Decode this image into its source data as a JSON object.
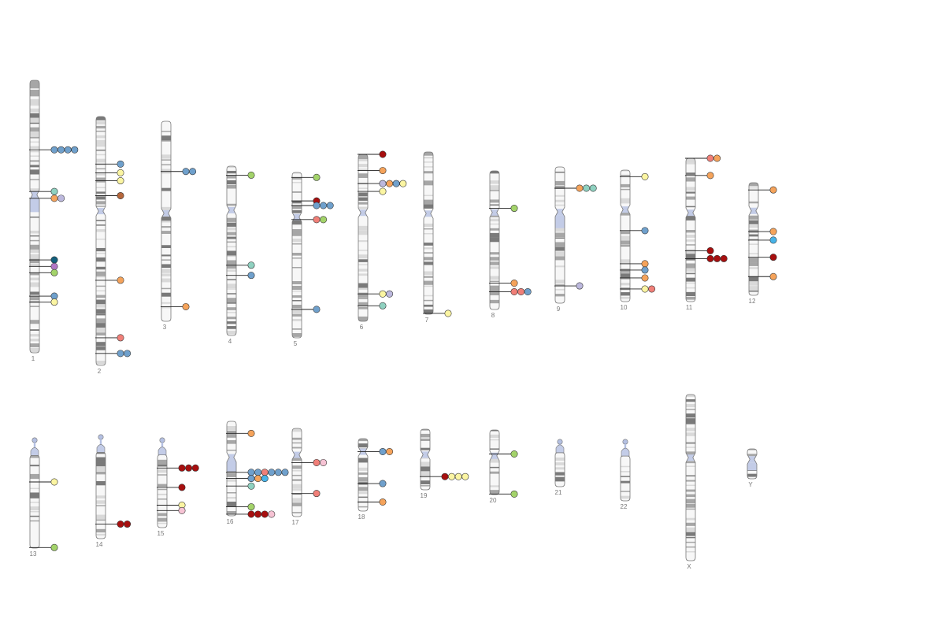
{
  "colors": {
    "outline": "#777777",
    "body": "#f7f7f7",
    "light_band": "#d9d9d9",
    "dark_band": "#7a7a7a",
    "mid_band": "#a6a6a6",
    "centromere": "#c3cce7",
    "stalk": "#b4c0e2",
    "line": "#222222"
  },
  "palette": {
    "blue": "#6fa0cc",
    "orange": "#f5a35b",
    "green": "#a3d36a",
    "yellow": "#fbf5a2",
    "teal": "#8fd1c0",
    "lavender": "#bcb8dd",
    "pink": "#f6c3d4",
    "salmon": "#f07f78",
    "darkred": "#a70f0f",
    "brown": "#b5663b",
    "navy": "#13607d",
    "purple": "#b377c6",
    "skyblue": "#47b3e8"
  },
  "chromosomes": [
    {
      "name": "1",
      "length": 248,
      "centromere": 0.42,
      "acrocentric": false,
      "marks": [
        {
          "pos": 0.255,
          "colors": [
            "blue",
            "blue",
            "blue",
            "blue"
          ]
        },
        {
          "pos": 0.408,
          "colors": [
            "teal"
          ]
        },
        {
          "pos": 0.433,
          "colors": [
            "orange",
            "lavender"
          ]
        },
        {
          "pos": 0.659,
          "colors": [
            "navy"
          ]
        },
        {
          "pos": 0.683,
          "colors": [
            "purple"
          ]
        },
        {
          "pos": 0.706,
          "colors": [
            "green"
          ]
        },
        {
          "pos": 0.792,
          "colors": [
            "blue"
          ]
        },
        {
          "pos": 0.814,
          "colors": [
            "yellow"
          ]
        }
      ]
    },
    {
      "name": "2",
      "length": 242,
      "centromere": 0.38,
      "acrocentric": false,
      "marks": [
        {
          "pos": 0.191,
          "colors": [
            "blue"
          ]
        },
        {
          "pos": 0.226,
          "colors": [
            "yellow"
          ]
        },
        {
          "pos": 0.258,
          "colors": [
            "yellow"
          ]
        },
        {
          "pos": 0.318,
          "colors": [
            "brown"
          ]
        },
        {
          "pos": 0.658,
          "colors": [
            "orange"
          ]
        },
        {
          "pos": 0.889,
          "colors": [
            "salmon"
          ]
        },
        {
          "pos": 0.952,
          "colors": [
            "blue",
            "blue"
          ]
        }
      ]
    },
    {
      "name": "3",
      "length": 198,
      "centromere": 0.46,
      "acrocentric": false,
      "marks": [
        {
          "pos": 0.251,
          "colors": [
            "blue",
            "blue"
          ]
        },
        {
          "pos": 0.927,
          "colors": [
            "orange"
          ]
        }
      ]
    },
    {
      "name": "4",
      "length": 190,
      "centromere": 0.26,
      "acrocentric": false,
      "marks": [
        {
          "pos": 0.053,
          "colors": [
            "green"
          ]
        },
        {
          "pos": 0.585,
          "colors": [
            "teal"
          ]
        },
        {
          "pos": 0.645,
          "colors": [
            "blue"
          ]
        }
      ]
    },
    {
      "name": "5",
      "length": 181,
      "centromere": 0.27,
      "acrocentric": false,
      "marks": [
        {
          "pos": 0.03,
          "colors": [
            "green"
          ]
        },
        {
          "pos": 0.172,
          "colors": [
            "darkred"
          ]
        },
        {
          "pos": 0.2,
          "colors": [
            "blue",
            "blue",
            "blue"
          ]
        },
        {
          "pos": 0.285,
          "colors": [
            "salmon",
            "green"
          ]
        },
        {
          "pos": 0.828,
          "colors": [
            "blue"
          ]
        }
      ]
    },
    {
      "name": "6",
      "length": 171,
      "centromere": 0.35,
      "acrocentric": false,
      "marks": [
        {
          "pos": 0.0,
          "colors": [
            "darkred"
          ]
        },
        {
          "pos": 0.097,
          "colors": [
            "orange"
          ]
        },
        {
          "pos": 0.175,
          "colors": [
            "lavender",
            "orange",
            "blue",
            "yellow"
          ]
        },
        {
          "pos": 0.222,
          "colors": [
            "yellow"
          ]
        },
        {
          "pos": 0.836,
          "colors": [
            "yellow",
            "lavender"
          ]
        },
        {
          "pos": 0.907,
          "colors": [
            "teal"
          ]
        }
      ]
    },
    {
      "name": "7",
      "length": 159,
      "centromere": 0.38,
      "acrocentric": false,
      "marks": [
        {
          "pos": 0.995,
          "colors": [
            "yellow"
          ]
        }
      ]
    },
    {
      "name": "8",
      "length": 146,
      "centromere": 0.3,
      "acrocentric": false,
      "marks": [
        {
          "pos": 0.27,
          "colors": [
            "green"
          ]
        },
        {
          "pos": 0.81,
          "colors": [
            "orange"
          ]
        },
        {
          "pos": 0.872,
          "colors": [
            "salmon",
            "salmon",
            "blue"
          ]
        }
      ]
    },
    {
      "name": "9",
      "length": 141,
      "centromere": 0.33,
      "acrocentric": false,
      "marks": [
        {
          "pos": 0.156,
          "colors": [
            "orange",
            "teal",
            "teal"
          ]
        },
        {
          "pos": 0.873,
          "colors": [
            "lavender"
          ]
        }
      ]
    },
    {
      "name": "10",
      "length": 135,
      "centromere": 0.3,
      "acrocentric": false,
      "marks": [
        {
          "pos": 0.05,
          "colors": [
            "yellow"
          ]
        },
        {
          "pos": 0.46,
          "colors": [
            "blue"
          ]
        },
        {
          "pos": 0.712,
          "colors": [
            "orange"
          ]
        },
        {
          "pos": 0.76,
          "colors": [
            "blue"
          ]
        },
        {
          "pos": 0.82,
          "colors": [
            "orange"
          ]
        },
        {
          "pos": 0.904,
          "colors": [
            "yellow",
            "salmon"
          ]
        }
      ]
    },
    {
      "name": "11",
      "length": 135,
      "centromere": 0.38,
      "acrocentric": false,
      "marks": [
        {
          "pos": 0.0,
          "colors": [
            "salmon",
            "orange"
          ]
        },
        {
          "pos": 0.12,
          "colors": [
            "orange"
          ]
        },
        {
          "pos": 0.645,
          "colors": [
            "darkred"
          ]
        },
        {
          "pos": 0.7,
          "colors": [
            "darkred",
            "darkred",
            "darkred"
          ]
        }
      ]
    },
    {
      "name": "12",
      "length": 133,
      "centromere": 0.25,
      "acrocentric": false,
      "marks": [
        {
          "pos": 0.064,
          "colors": [
            "orange"
          ]
        },
        {
          "pos": 0.434,
          "colors": [
            "orange"
          ]
        },
        {
          "pos": 0.51,
          "colors": [
            "skyblue"
          ]
        },
        {
          "pos": 0.662,
          "colors": [
            "darkred"
          ]
        },
        {
          "pos": 0.834,
          "colors": [
            "orange"
          ]
        }
      ]
    },
    {
      "name": "13",
      "length": 114,
      "centromere": 0.16,
      "acrocentric": true,
      "marks": [
        {
          "pos": 0.4,
          "colors": [
            "yellow"
          ]
        },
        {
          "pos": 0.995,
          "colors": [
            "green"
          ]
        }
      ]
    },
    {
      "name": "14",
      "length": 107,
      "centromere": 0.17,
      "acrocentric": true,
      "marks": [
        {
          "pos": 0.86,
          "colors": [
            "darkred",
            "darkred"
          ]
        }
      ]
    },
    {
      "name": "15",
      "length": 102,
      "centromere": 0.19,
      "acrocentric": true,
      "marks": [
        {
          "pos": 0.336,
          "colors": [
            "darkred",
            "darkred",
            "darkred"
          ]
        },
        {
          "pos": 0.552,
          "colors": [
            "darkred"
          ]
        },
        {
          "pos": 0.75,
          "colors": [
            "yellow"
          ]
        },
        {
          "pos": 0.81,
          "colors": [
            "pink"
          ]
        }
      ]
    },
    {
      "name": "16",
      "length": 90,
      "centromere": 0.38,
      "acrocentric": false,
      "marks": [
        {
          "pos": 0.128,
          "colors": [
            "orange"
          ]
        },
        {
          "pos": 0.54,
          "colors": [
            "blue",
            "blue",
            "salmon",
            "blue",
            "blue",
            "blue"
          ]
        },
        {
          "pos": 0.605,
          "colors": [
            "blue",
            "orange",
            "skyblue"
          ]
        },
        {
          "pos": 0.685,
          "colors": [
            "teal"
          ]
        },
        {
          "pos": 0.905,
          "colors": [
            "green"
          ]
        },
        {
          "pos": 0.983,
          "colors": [
            "darkred",
            "darkred",
            "darkred",
            "pink"
          ]
        }
      ]
    },
    {
      "name": "17",
      "length": 83,
      "centromere": 0.3,
      "acrocentric": false,
      "marks": [
        {
          "pos": 0.388,
          "colors": [
            "salmon",
            "pink"
          ]
        },
        {
          "pos": 0.738,
          "colors": [
            "salmon"
          ]
        }
      ]
    },
    {
      "name": "18",
      "length": 80,
      "centromere": 0.18,
      "acrocentric": false,
      "marks": [
        {
          "pos": 0.179,
          "colors": [
            "blue",
            "orange"
          ]
        },
        {
          "pos": 0.62,
          "colors": [
            "blue"
          ]
        },
        {
          "pos": 0.875,
          "colors": [
            "orange"
          ]
        }
      ]
    },
    {
      "name": "19",
      "length": 59,
      "centromere": 0.42,
      "acrocentric": false,
      "marks": [
        {
          "pos": 0.782,
          "colors": [
            "darkred",
            "yellow",
            "yellow",
            "yellow"
          ]
        }
      ]
    },
    {
      "name": "20",
      "length": 64,
      "centromere": 0.4,
      "acrocentric": false,
      "marks": [
        {
          "pos": 0.372,
          "colors": [
            "green"
          ]
        },
        {
          "pos": 0.992,
          "colors": [
            "green"
          ]
        }
      ]
    },
    {
      "name": "21",
      "length": 47,
      "centromere": 0.28,
      "acrocentric": true,
      "marks": []
    },
    {
      "name": "22",
      "length": 51,
      "centromere": 0.27,
      "acrocentric": true,
      "marks": []
    },
    {
      "name": "X",
      "length": 156,
      "centromere": 0.38,
      "acrocentric": false,
      "marks": []
    },
    {
      "name": "Y",
      "length": 57,
      "centromere": 0.35,
      "acrocentric": false,
      "marks": []
    }
  ]
}
